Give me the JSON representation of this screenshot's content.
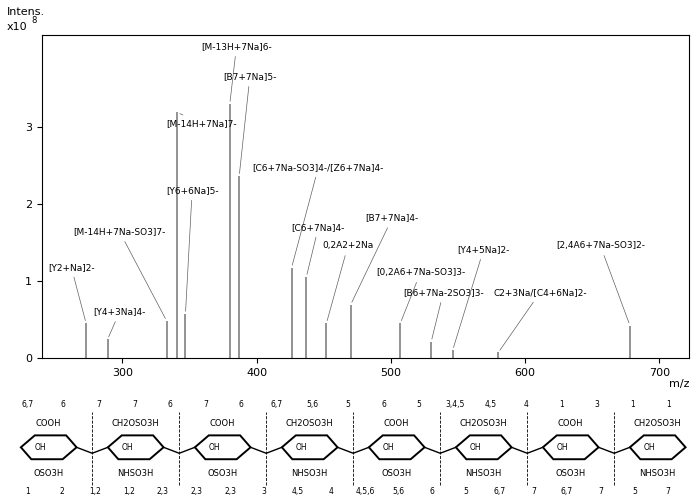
{
  "chart_data": {
    "type": "spectrum",
    "color": "#808080",
    "x_label": "m/z",
    "y_label": "Intens.",
    "y_multiplier": "x10",
    "y_exponent": "8",
    "xlim": [
      240,
      722
    ],
    "xticks": [
      300,
      400,
      500,
      600,
      700
    ],
    "ylim": [
      0,
      4.2
    ],
    "yticks": [
      0,
      1,
      2,
      3
    ],
    "peaks": [
      {
        "mz": 273,
        "intensity": 0.45,
        "label": "[Y2+Na]2-"
      },
      {
        "mz": 289,
        "intensity": 0.24,
        "label": "[Y4+3Na]4-"
      },
      {
        "mz": 333,
        "intensity": 0.48,
        "label": "[M-14H+7Na-SO3]7-"
      },
      {
        "mz": 341,
        "intensity": 3.19,
        "label": "[M-14H+7Na]7-"
      },
      {
        "mz": 347,
        "intensity": 0.57,
        "label": "[Y6+6Na]5-"
      },
      {
        "mz": 380,
        "intensity": 3.3,
        "label": "[M-13H+7Na]6-"
      },
      {
        "mz": 387,
        "intensity": 2.36,
        "label": "[B7+7Na]5-"
      },
      {
        "mz": 426,
        "intensity": 1.17,
        "label": "[C6+7Na-SO3]4-/[Z6+7Na]4-"
      },
      {
        "mz": 437,
        "intensity": 1.05,
        "label": "[C6+7Na]4-"
      },
      {
        "mz": 452,
        "intensity": 0.45,
        "label": "0,2A2+2Na"
      },
      {
        "mz": 470,
        "intensity": 0.69,
        "label": "[B7+7Na]4-"
      },
      {
        "mz": 507,
        "intensity": 0.45,
        "label": "[0,2A6+7Na-SO3]3-"
      },
      {
        "mz": 530,
        "intensity": 0.21,
        "label": "[B6+7Na-2SO3]3-"
      },
      {
        "mz": 546,
        "intensity": 0.1,
        "label": "[Y4+5Na]2-"
      },
      {
        "mz": 580,
        "intensity": 0.07,
        "label": "C2+3Na/[C4+6Na]2-"
      },
      {
        "mz": 678,
        "intensity": 0.42,
        "label": "[2,4A6+7Na-SO3]2-"
      }
    ]
  },
  "diagram": {
    "residues": [
      {
        "top": "COOH",
        "middle": "OH",
        "bottom": "OSO3H"
      },
      {
        "top": "CH2OSO3H",
        "middle": "OH",
        "bottom": "NHSO3H"
      },
      {
        "top": "COOH",
        "middle": "OH",
        "bottom": "OSO3H"
      },
      {
        "top": "CH2OSO3H",
        "middle": "OH",
        "bottom": "NHSO3H"
      },
      {
        "top": "COOH",
        "middle": "OH",
        "bottom": "OSO3H"
      },
      {
        "top": "CH2OSO3H",
        "middle": "OH",
        "bottom": "NHSO3H"
      },
      {
        "top": "COOH",
        "middle": "OH",
        "bottom": "OSO3H"
      },
      {
        "top": "CH2OSO3H",
        "middle": "OH",
        "bottom": "NHSO3H"
      }
    ],
    "cleavages_top": [
      "6,7",
      "6",
      "7",
      "7",
      "6",
      "7",
      "6",
      "6,7",
      "5,6",
      "5",
      "6",
      "5",
      "3,4,5",
      "4,5",
      "4",
      "1",
      "3",
      "1",
      "1"
    ],
    "cleavages_bottom": [
      "1",
      "2",
      "1,2",
      "1,2",
      "2,3",
      "2,3",
      "2,3",
      "3",
      "4,5",
      "4",
      "4,5,6",
      "5,6",
      "6",
      "5",
      "6,7",
      "7",
      "6,7",
      "7",
      "5",
      "7"
    ]
  }
}
